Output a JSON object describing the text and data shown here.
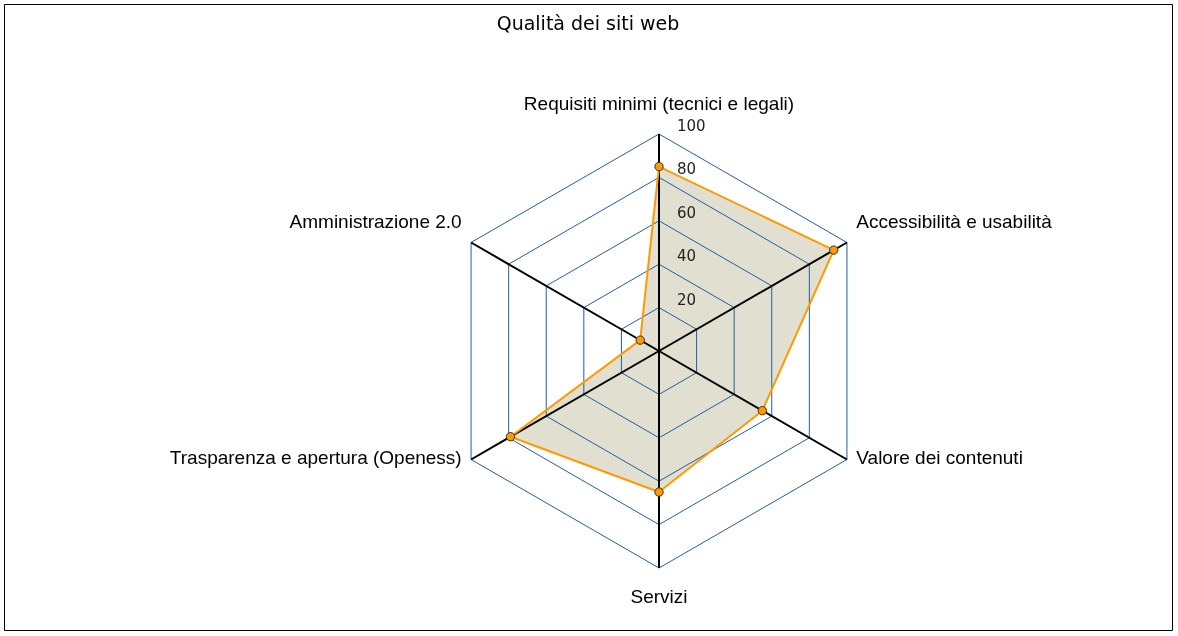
{
  "chart_data": {
    "type": "radar",
    "title": "Qualità dei siti web",
    "categories": [
      "Requisiti minimi (tecnici e legali)",
      "Accessibilità e usabilità",
      "Valore dei contenuti",
      "Servizi",
      "Trasparenza e apertura (Openess)",
      "Amministrazione 2.0"
    ],
    "series": [
      {
        "color": "#ff9900",
        "values": [
          85,
          93,
          55,
          65,
          79,
          10
        ]
      }
    ],
    "ylim": [
      0,
      100
    ],
    "yticks": [
      20,
      40,
      60,
      80,
      100
    ],
    "grid": true,
    "marker": "circle"
  }
}
